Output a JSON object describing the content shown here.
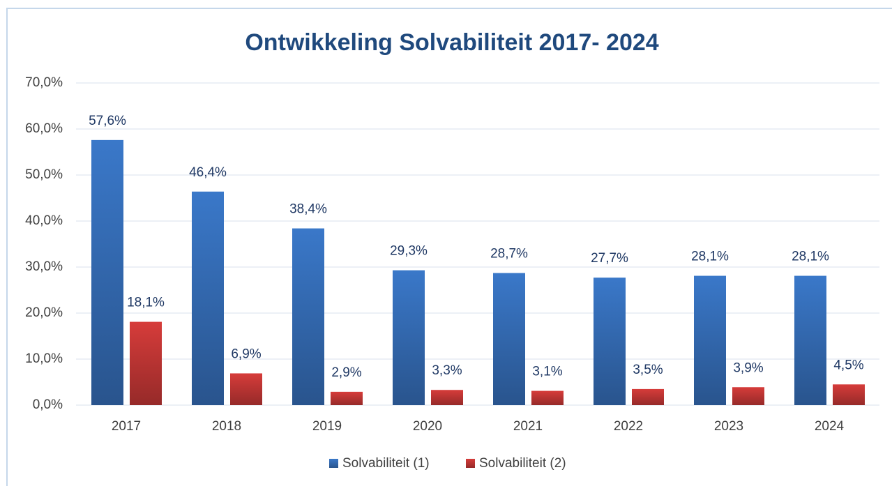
{
  "chart_data": {
    "type": "bar",
    "title": "Ontwikkeling Solvabiliteit 2017- 2024",
    "categories": [
      "2017",
      "2018",
      "2019",
      "2020",
      "2021",
      "2022",
      "2023",
      "2024"
    ],
    "series": [
      {
        "name": "Solvabiliteit (1)",
        "color": "#3a78c9",
        "values": [
          57.6,
          46.4,
          38.4,
          29.3,
          28.7,
          27.7,
          28.1,
          28.1
        ],
        "value_labels": [
          "57,6%",
          "46,4%",
          "38,4%",
          "29,3%",
          "28,7%",
          "27,7%",
          "28,1%",
          "28,1%"
        ]
      },
      {
        "name": "Solvabiliteit (2)",
        "color": "#d63c3a",
        "values": [
          18.1,
          6.9,
          2.9,
          3.3,
          3.1,
          3.5,
          3.9,
          4.5
        ],
        "value_labels": [
          "18,1%",
          "6,9%",
          "2,9%",
          "3,3%",
          "3,1%",
          "3,5%",
          "3,9%",
          "4,5%"
        ]
      }
    ],
    "ylim": [
      0,
      70
    ],
    "yticks": [
      {
        "value": 0,
        "label": "0,0%"
      },
      {
        "value": 10,
        "label": "10,0%"
      },
      {
        "value": 20,
        "label": "20,0%"
      },
      {
        "value": 30,
        "label": "30,0%"
      },
      {
        "value": 40,
        "label": "40,0%"
      },
      {
        "value": 50,
        "label": "50,0%"
      },
      {
        "value": 60,
        "label": "60,0%"
      },
      {
        "value": 70,
        "label": "70,0%"
      }
    ],
    "grid": true,
    "legend": "bottom"
  }
}
